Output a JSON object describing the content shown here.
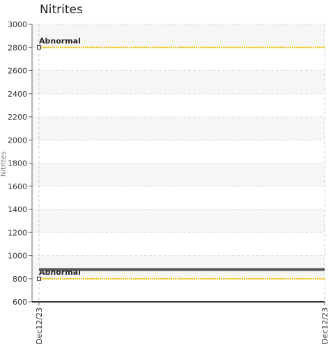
{
  "chart_data": {
    "type": "line",
    "title": "Nitrites",
    "ylabel": "Nitrites",
    "xlabel": "",
    "ylim": [
      600,
      3000
    ],
    "yticks": [
      600,
      800,
      1000,
      1200,
      1400,
      1600,
      1800,
      2000,
      2200,
      2400,
      2600,
      2800,
      3000
    ],
    "x_tick_labels": [
      "Dec12/23",
      "Dec12/23"
    ],
    "grid": true,
    "series": [
      {
        "name": "",
        "values": [
          880,
          880
        ],
        "color": "#555555"
      }
    ],
    "reference_lines": [
      {
        "label": "Abnormal",
        "value": 2800,
        "color": "#f2c200"
      },
      {
        "label": "Abnormal",
        "value": 800,
        "color": "#f2c200"
      }
    ]
  }
}
